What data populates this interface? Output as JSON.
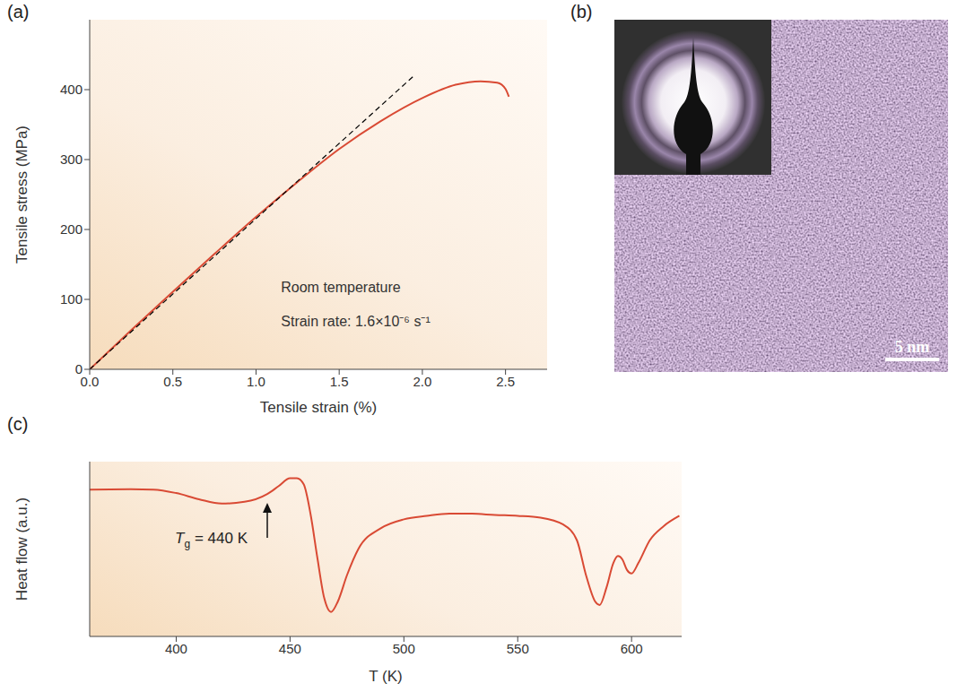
{
  "chart_data": [
    {
      "panel": "(a)",
      "type": "line",
      "x_label": "Tensile strain (%)",
      "y_label": "Tensile stress (MPa)",
      "xlim": [
        0,
        2.75
      ],
      "xticks": [
        {
          "value": 0,
          "label": "0.0"
        },
        0.5,
        {
          "value": 1,
          "label": "1.0"
        },
        1.5,
        {
          "value": 2,
          "label": "2.0"
        },
        2.5
      ],
      "ylim": [
        0,
        500
      ],
      "yticks": [
        0,
        100,
        200,
        300,
        400
      ],
      "series": [
        {
          "color": "#d94a34",
          "line_style": "solid",
          "x": [
            0,
            0.25,
            0.5,
            0.75,
            1.0,
            1.25,
            1.5,
            1.75,
            2.0,
            2.2,
            2.35,
            2.45,
            2.5,
            2.52
          ],
          "values": [
            0,
            56,
            111,
            165,
            218,
            268,
            315,
            355,
            388,
            407,
            412,
            410,
            401,
            390
          ]
        },
        {
          "color": "#000000",
          "line_style": "dashed",
          "x": [
            0,
            1.95
          ],
          "values": [
            0,
            420
          ]
        }
      ],
      "annotations": [
        {
          "text": "Room temperature",
          "x": 1.15,
          "y": 110
        },
        {
          "text": "Strain rate: 1.6×10⁻⁶ s⁻¹",
          "x": 1.15,
          "y": 62
        }
      ]
    },
    {
      "panel": "(c)",
      "type": "line",
      "x_label": "T (K)",
      "y_label": "Heat flow (a.u.)",
      "xlim": [
        362,
        622
      ],
      "xticks": [
        400,
        450,
        500,
        550,
        600
      ],
      "ylim": [
        0,
        100
      ],
      "tick_labels": "x",
      "series": [
        {
          "color": "#d94a34",
          "line_style": "solid",
          "x": [
            362,
            380,
            390,
            400,
            410,
            420,
            430,
            440,
            445,
            450,
            453,
            456,
            459,
            462,
            465,
            468,
            471,
            475,
            480,
            490,
            500,
            510,
            520,
            530,
            540,
            550,
            560,
            570,
            576,
            580,
            584,
            586,
            589,
            592,
            594,
            596,
            598,
            600,
            603,
            608,
            614,
            621
          ],
          "values": [
            84,
            84.2,
            84,
            82,
            78.5,
            76,
            77,
            81.5,
            86,
            90.5,
            90.5,
            87,
            70,
            45,
            22,
            14,
            20,
            35,
            50,
            62,
            67,
            69,
            70.3,
            70.2,
            69.5,
            69,
            68,
            64,
            55,
            35,
            20,
            18,
            28,
            42,
            46,
            44,
            38,
            36,
            42,
            55,
            63,
            69
          ]
        }
      ],
      "annotations": [
        {
          "text": "Tg = 440 K",
          "x": 440,
          "y": 78
        }
      ]
    }
  ],
  "image_panel": {
    "panel": "(b)",
    "scale_bar": "5 nm"
  }
}
